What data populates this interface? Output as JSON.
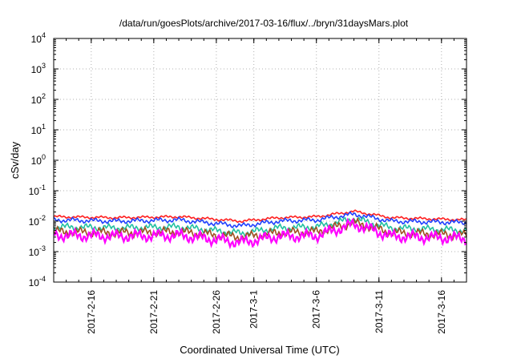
{
  "chart_data": {
    "type": "line",
    "title": "/data/run/goesPlots/archive/2017-03-16/flux/../bryn/31daysMars.plot",
    "xlabel": "Coordinated Universal Time (UTC)",
    "ylabel": "cSv/day",
    "y_scale": "log",
    "ylim_exponents": [
      -4,
      4
    ],
    "y_tick_labels": [
      {
        "exp": 4,
        "text": "10",
        "sup": "4"
      },
      {
        "exp": 3,
        "text": "10",
        "sup": "3"
      },
      {
        "exp": 2,
        "text": "10",
        "sup": "2"
      },
      {
        "exp": 1,
        "text": "10",
        "sup": "1"
      },
      {
        "exp": 0,
        "text": "10",
        "sup": "0"
      },
      {
        "exp": -1,
        "text": "10",
        "sup": "-1"
      },
      {
        "exp": -2,
        "text": "10",
        "sup": "-2"
      },
      {
        "exp": -3,
        "text": "10",
        "sup": "-3"
      },
      {
        "exp": -4,
        "text": "10",
        "sup": "-4"
      }
    ],
    "xlim": [
      "2017-02-13",
      "2017-03-18"
    ],
    "x_ticks": [
      "2017-02-16",
      "2017-02-21",
      "2017-02-26",
      "2017-03-01",
      "2017-03-06",
      "2017-03-11",
      "2017-03-16"
    ],
    "x_tick_labels": [
      "2017-2-16",
      "2017-2-21",
      "2017-2-26",
      "2017-3-1",
      "2017-3-6",
      "2017-3-11",
      "2017-3-16"
    ],
    "grid": true,
    "series": [
      {
        "color": "#ff2020",
        "points": [
          [
            "2017-02-13",
            0.014
          ],
          [
            "2017-02-18",
            0.013
          ],
          [
            "2017-02-23",
            0.014
          ],
          [
            "2017-02-28",
            0.01
          ],
          [
            "2017-03-03",
            0.013
          ],
          [
            "2017-03-06",
            0.014
          ],
          [
            "2017-03-09",
            0.021
          ],
          [
            "2017-03-12",
            0.013
          ],
          [
            "2017-03-18",
            0.011
          ]
        ]
      },
      {
        "color": "#2040ff",
        "points": [
          [
            "2017-02-13",
            0.011
          ],
          [
            "2017-02-18",
            0.01
          ],
          [
            "2017-02-23",
            0.011
          ],
          [
            "2017-02-28",
            0.007
          ],
          [
            "2017-03-03",
            0.01
          ],
          [
            "2017-03-06",
            0.011
          ],
          [
            "2017-03-09",
            0.017
          ],
          [
            "2017-03-12",
            0.01
          ],
          [
            "2017-03-18",
            0.009
          ]
        ]
      },
      {
        "color": "#20c0a0",
        "points": [
          [
            "2017-02-13",
            0.0065
          ],
          [
            "2017-02-18",
            0.006
          ],
          [
            "2017-02-23",
            0.0065
          ],
          [
            "2017-02-28",
            0.004
          ],
          [
            "2017-03-03",
            0.006
          ],
          [
            "2017-03-06",
            0.0065
          ],
          [
            "2017-03-09",
            0.012
          ],
          [
            "2017-03-12",
            0.006
          ],
          [
            "2017-03-18",
            0.005
          ]
        ]
      },
      {
        "color": "#a05020",
        "points": [
          [
            "2017-02-13",
            0.0045
          ],
          [
            "2017-02-18",
            0.0042
          ],
          [
            "2017-02-23",
            0.0045
          ],
          [
            "2017-02-28",
            0.003
          ],
          [
            "2017-03-03",
            0.0042
          ],
          [
            "2017-03-06",
            0.0045
          ],
          [
            "2017-03-09",
            0.009
          ],
          [
            "2017-03-12",
            0.0042
          ],
          [
            "2017-03-18",
            0.0035
          ]
        ]
      },
      {
        "color": "#ff00ff",
        "points": [
          [
            "2017-02-13",
            0.0035
          ],
          [
            "2017-02-18",
            0.0032
          ],
          [
            "2017-02-23",
            0.0034
          ],
          [
            "2017-02-28",
            0.002
          ],
          [
            "2017-03-03",
            0.0032
          ],
          [
            "2017-03-06",
            0.0033
          ],
          [
            "2017-03-09",
            0.008
          ],
          [
            "2017-03-12",
            0.0032
          ],
          [
            "2017-03-18",
            0.0027
          ]
        ]
      }
    ]
  }
}
